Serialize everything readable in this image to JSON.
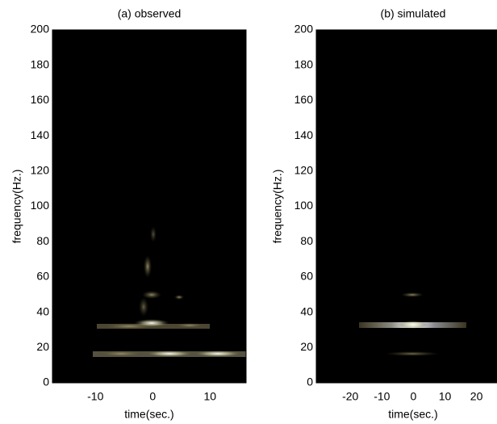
{
  "chart_data": [
    {
      "type": "spectrogram",
      "title": "(a) observed",
      "xlabel": "time(sec.)",
      "ylabel": "frequency(Hz.)",
      "xlim": [
        -17.5,
        16.3
      ],
      "xticks": [
        -10,
        0,
        10
      ],
      "ylim": [
        0,
        200
      ],
      "yticks": [
        0,
        20,
        40,
        60,
        80,
        100,
        120,
        140,
        160,
        180,
        200
      ]
    },
    {
      "type": "spectrogram",
      "title": "(b) simulated",
      "xlabel": "time(sec.)",
      "ylabel": "frequency(Hz.)",
      "xlim": [
        -30.8,
        26.5
      ],
      "xticks": [
        -20,
        -10,
        0,
        10,
        20
      ],
      "ylim": [
        0,
        200
      ],
      "yticks": [
        0,
        20,
        40,
        60,
        80,
        100,
        120,
        140,
        160,
        180,
        200
      ]
    }
  ]
}
